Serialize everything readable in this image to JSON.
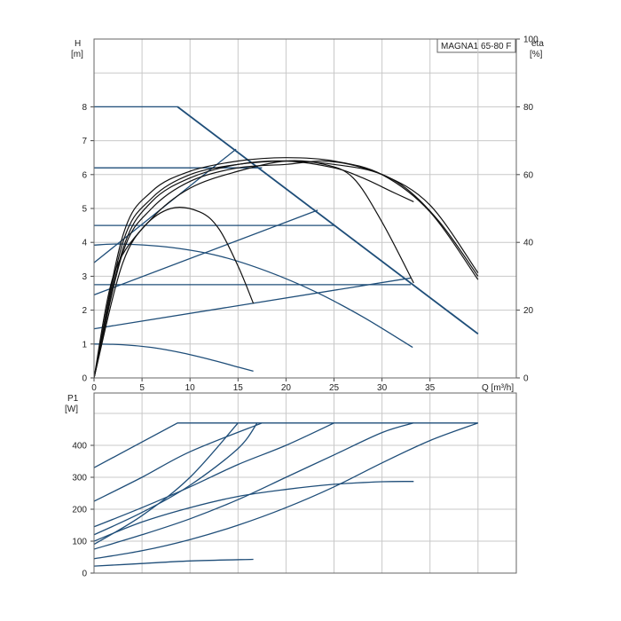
{
  "chart_data": [
    {
      "type": "line",
      "name": "head-and-efficiency",
      "legend_box": "MAGNA1 65-80 F",
      "ylabel": "H",
      "yunit": "[m]",
      "y2label": "eta",
      "y2unit": "[%]",
      "xlabel": "Q [m³/h]",
      "xlim": [
        0,
        44
      ],
      "ylim": [
        0,
        10
      ],
      "y2lim": [
        0,
        100
      ],
      "x_ticks": [
        "0",
        "5",
        "10",
        "15",
        "20",
        "25",
        "30",
        "35"
      ],
      "y_ticks": [
        "0",
        "1",
        "2",
        "3",
        "4",
        "5",
        "6",
        "7",
        "8"
      ],
      "y2_ticks": [
        "0",
        "20",
        "40",
        "60",
        "80",
        "100"
      ],
      "grid": true,
      "head_curves": [
        {
          "x": [
            0,
            8.7,
            40
          ],
          "y": [
            8,
            8,
            1.3
          ]
        },
        {
          "x": [
            0,
            17.5
          ],
          "y": [
            6.2,
            6.2
          ]
        },
        {
          "x": [
            0,
            25
          ],
          "y": [
            4.5,
            4.5
          ]
        },
        {
          "x": [
            0,
            33
          ],
          "y": [
            2.75,
            2.75
          ]
        },
        {
          "x": [
            0,
            3,
            8,
            13,
            18,
            23,
            28,
            33.2
          ],
          "y": [
            3.92,
            3.95,
            3.85,
            3.6,
            3.15,
            2.55,
            1.8,
            0.9
          ]
        },
        {
          "x": [
            0,
            3,
            6,
            9,
            12,
            15,
            16.6
          ],
          "y": [
            1.0,
            0.98,
            0.9,
            0.75,
            0.55,
            0.32,
            0.2
          ]
        }
      ],
      "control_lines": [
        {
          "x": [
            0,
            14.8
          ],
          "y": [
            3.4,
            6.75
          ]
        },
        {
          "x": [
            0,
            23.3
          ],
          "y": [
            2.45,
            4.95
          ]
        },
        {
          "x": [
            0,
            33
          ],
          "y": [
            1.45,
            2.95
          ]
        }
      ],
      "efficiency_curves": [
        {
          "x": [
            0,
            2,
            5,
            8,
            11,
            13,
            15,
            16.6
          ],
          "y": [
            0,
            30,
            44,
            50,
            49,
            44,
            33,
            22
          ]
        },
        {
          "x": [
            0,
            3,
            6,
            10,
            15,
            20,
            24,
            27,
            30,
            33.3
          ],
          "y": [
            0,
            34,
            47,
            56,
            61,
            64,
            63,
            59,
            46,
            28
          ]
        },
        {
          "x": [
            0,
            3,
            6,
            10,
            15,
            20,
            25,
            28,
            31,
            33.3
          ],
          "y": [
            0,
            38,
            52,
            59,
            63,
            64,
            62,
            59,
            55,
            52
          ]
        },
        {
          "x": [
            0,
            3,
            6,
            10,
            15,
            20,
            25,
            30,
            35,
            40
          ],
          "y": [
            0,
            42,
            55,
            61,
            64,
            65,
            64,
            60,
            49,
            29
          ]
        },
        {
          "x": [
            0,
            3,
            6,
            10,
            15,
            20,
            25,
            30,
            35,
            40
          ],
          "y": [
            0,
            40,
            53,
            60,
            63,
            64,
            63,
            60,
            51,
            31
          ]
        },
        {
          "x": [
            0,
            3,
            6,
            10,
            15,
            20,
            24,
            28,
            32,
            36,
            40
          ],
          "y": [
            0,
            37,
            50,
            58,
            62,
            63,
            64,
            62,
            57,
            46,
            30
          ]
        }
      ]
    },
    {
      "type": "line",
      "name": "power-input",
      "ylabel": "P1",
      "yunit": "[W]",
      "xlim": [
        0,
        44
      ],
      "ylim": [
        0,
        520
      ],
      "y_ticks": [
        "0",
        "100",
        "200",
        "300",
        "400"
      ],
      "grid": true,
      "power_curves": [
        {
          "x": [
            0,
            8.7,
            40
          ],
          "y": [
            330,
            470,
            470
          ]
        },
        {
          "x": [
            0,
            5,
            10,
            17.5
          ],
          "y": [
            225,
            300,
            380,
            470
          ]
        },
        {
          "x": [
            0,
            5,
            10,
            15,
            20,
            25
          ],
          "y": [
            145,
            205,
            270,
            340,
            400,
            470
          ]
        },
        {
          "x": [
            0,
            5,
            10,
            15,
            20,
            25,
            30,
            33.3
          ],
          "y": [
            75,
            120,
            170,
            230,
            300,
            370,
            440,
            470
          ]
        },
        {
          "x": [
            0,
            5,
            10,
            15,
            20,
            25,
            30,
            35,
            40
          ],
          "y": [
            45,
            70,
            105,
            150,
            205,
            270,
            345,
            415,
            470
          ]
        },
        {
          "x": [
            0,
            5,
            10,
            15,
            20,
            25,
            30,
            33.3
          ],
          "y": [
            100,
            160,
            205,
            240,
            262,
            278,
            286,
            287
          ]
        },
        {
          "x": [
            0,
            5,
            10,
            16.6
          ],
          "y": [
            22,
            30,
            38,
            43
          ]
        },
        {
          "x": [
            0,
            5,
            10,
            15
          ],
          "y": [
            90,
            180,
            300,
            470
          ]
        },
        {
          "x": [
            0,
            5,
            10,
            15,
            17
          ],
          "y": [
            120,
            190,
            275,
            390,
            470
          ]
        }
      ]
    }
  ],
  "colors": {
    "head": "#1f4e79",
    "efficiency": "#111111",
    "power": "#1f4e79"
  }
}
